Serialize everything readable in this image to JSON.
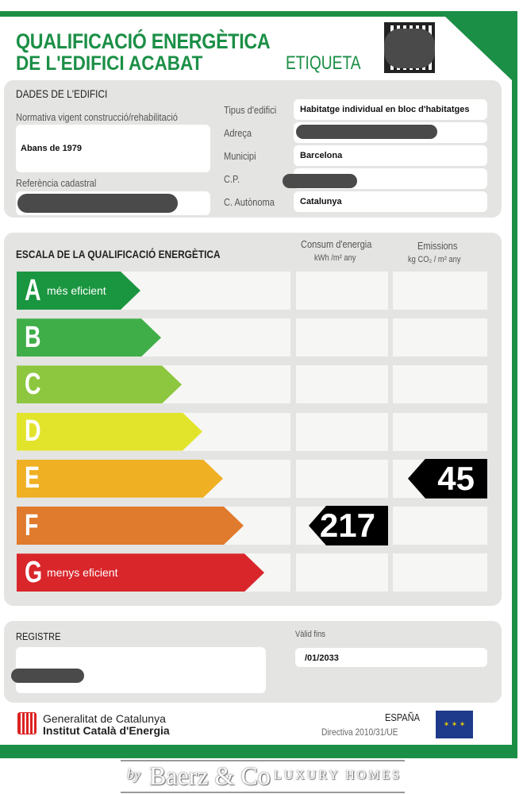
{
  "header": {
    "title_line1": "QUALIFICACIÓ ENERGÈTICA",
    "title_line2": "DE L'EDIFICI ACABAT",
    "label": "ETIQUETA",
    "qr_icon": "qr-code-icon"
  },
  "building": {
    "heading": "DADES DE L'EDIFICI",
    "normativa_label": "Normativa vigent construcció/rehabilitació",
    "normativa_value": "Abans de 1979",
    "ref_label": "Referència cadastral",
    "fields": [
      {
        "label": "Tipus d'edifici",
        "value": "Habitatge individual en bloc d'habitatges"
      },
      {
        "label": "Adreça",
        "value": ""
      },
      {
        "label": "Municipi",
        "value": "Barcelona"
      },
      {
        "label": "C.P.",
        "value": ""
      },
      {
        "label": "C. Autònoma",
        "value": "Catalunya"
      }
    ]
  },
  "scale": {
    "heading": "ESCALA DE LA QUALIFICACIÓ ENERGÈTICA",
    "consumption_label": "Consum d'energia",
    "consumption_unit": "kWh /m² any",
    "emissions_label": "Emissions",
    "emissions_unit": "kg CO₂ / m² any",
    "classes": [
      {
        "letter": "A",
        "sub": "més eficient",
        "color": "#1a9640"
      },
      {
        "letter": "B",
        "sub": "",
        "color": "#3fae49"
      },
      {
        "letter": "C",
        "sub": "",
        "color": "#8dc63f"
      },
      {
        "letter": "D",
        "sub": "",
        "color": "#e2e42c"
      },
      {
        "letter": "E",
        "sub": "",
        "color": "#f0b024"
      },
      {
        "letter": "F",
        "sub": "",
        "color": "#e07a2c"
      },
      {
        "letter": "G",
        "sub": "menys eficient",
        "color": "#d9262b"
      }
    ],
    "consumption": {
      "value": "217",
      "class": "F"
    },
    "emissions": {
      "value": "45",
      "class": "E"
    }
  },
  "registry": {
    "heading": "REGISTRE",
    "valid_label": "Vàlid fins",
    "valid_value": "/01/2033"
  },
  "footer": {
    "org1": "Generalitat de Catalunya",
    "org2": "Institut Català d'Energia",
    "country": "ESPAÑA",
    "directive": "Directiva 2010/31/UE",
    "eu_flag_icon": "eu-flag-icon"
  },
  "watermark": {
    "by": "by",
    "brand": "Baerz & Co",
    "sub": "LUXURY HOMES"
  }
}
